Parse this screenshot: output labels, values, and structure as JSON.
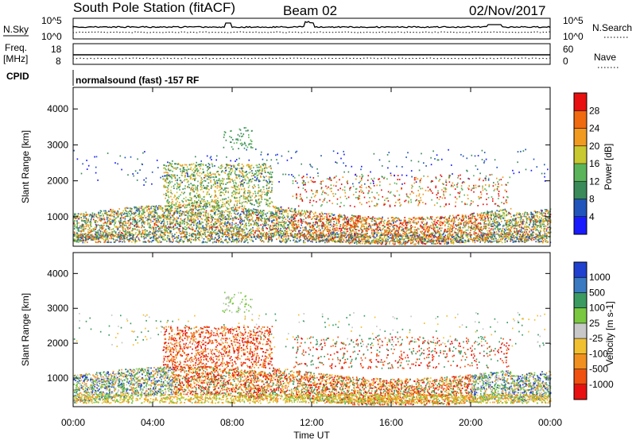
{
  "header": {
    "station": "South Pole Station (fitACF)",
    "beam": "Beam 02",
    "date": "02/Nov/2017"
  },
  "strips": {
    "nsky": {
      "label": "N.Sky",
      "ticks_left": [
        "10^5",
        "10^0"
      ]
    },
    "nsearch": {
      "label": "N.Search",
      "ticks_right": [
        "10^5",
        "10^0"
      ]
    },
    "freq": {
      "label_top": "Freq.",
      "label_bottom": "[MHz]",
      "ticks_left": [
        "18",
        "8"
      ]
    },
    "nave": {
      "label": "Nave",
      "ticks_right": [
        "60",
        "0"
      ]
    },
    "cpid": {
      "label": "CPID",
      "text": "normalsound (fast) -157 RF"
    }
  },
  "chart_data": [
    {
      "type": "heatmap",
      "name": "power-panel",
      "ylabel": "Slant Range [km]",
      "xlabel": "",
      "yticks": [
        1000,
        2000,
        3000,
        4000
      ],
      "ylim": [
        180,
        4600
      ],
      "xlim": [
        0,
        24
      ],
      "xticks": [
        0,
        4,
        8,
        12,
        16,
        20,
        24
      ],
      "colorbar": {
        "label": "Power [dB]",
        "ticks": [
          "4",
          "8",
          "12",
          "16",
          "20",
          "24",
          "28"
        ],
        "colors": [
          "#1a1aff",
          "#2255bb",
          "#3a8a5a",
          "#5ab55a",
          "#c8c830",
          "#f09a20",
          "#f06a10",
          "#e81010"
        ]
      },
      "description_regions": [
        {
          "x": [
            0.2,
            23.5
          ],
          "y": [
            300,
            1300
          ],
          "value_db": [
            8,
            30
          ]
        },
        {
          "x": [
            4.5,
            10
          ],
          "y": [
            1300,
            2500
          ],
          "value_db": [
            8,
            20
          ]
        },
        {
          "x": [
            7.5,
            9
          ],
          "y": [
            2800,
            3500
          ],
          "value_db": [
            10,
            16
          ]
        }
      ]
    },
    {
      "type": "heatmap",
      "name": "velocity-panel",
      "ylabel": "Slant Range [km]",
      "xlabel": "Time UT",
      "yticks": [
        1000,
        2000,
        3000,
        4000
      ],
      "ylim": [
        180,
        4600
      ],
      "xlim": [
        0,
        24
      ],
      "xticks": [
        0,
        4,
        8,
        12,
        16,
        20,
        24
      ],
      "xtick_labels": [
        "00:00",
        "04:00",
        "08:00",
        "12:00",
        "16:00",
        "20:00",
        "00:00"
      ],
      "colorbar": {
        "label": "Velocity [m s-1]",
        "ticks": [
          "1000",
          "500",
          "100",
          "25",
          "-25",
          "-100",
          "-500",
          "-1000"
        ],
        "colors": [
          "#2040d0",
          "#3a7ac0",
          "#3a9a60",
          "#7ac840",
          "#c8c8c8",
          "#f0c030",
          "#f09020",
          "#f05010",
          "#e81010"
        ]
      }
    }
  ]
}
